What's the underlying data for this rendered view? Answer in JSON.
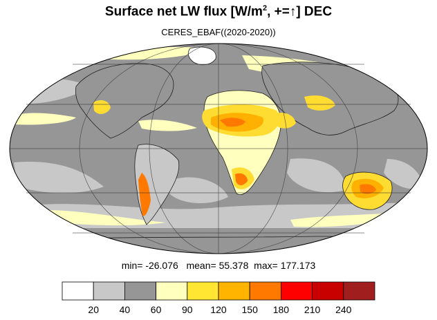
{
  "title": {
    "main": "Surface net LW flux [W/m",
    "sup": "2",
    "rest": ", +=↑]  DEC"
  },
  "subtitle": "CERES_EBAF((2020-2020))",
  "stats": {
    "min_label": "min=",
    "min": "-26.076",
    "mean_label": "mean=",
    "mean": "55.378",
    "max_label": "max=",
    "max": "177.173"
  },
  "colors": {
    "ocean_base": "#969696",
    "land_light": "#ffffbe",
    "yellow": "#ffdc32",
    "orange": "#ffb000",
    "dark_orange": "#ff7800",
    "light_gray": "#c8c8c8",
    "white": "#ffffff",
    "grid": "#333333",
    "coast": "#1e1e1e"
  },
  "legend": {
    "colors": [
      "#ffffff",
      "#c8c8c8",
      "#969696",
      "#ffffbe",
      "#ffe632",
      "#ffb400",
      "#ff7800",
      "#ff0000",
      "#c80000",
      "#a01e1e"
    ],
    "ticks": [
      "20",
      "40",
      "60",
      "90",
      "120",
      "150",
      "180",
      "210",
      "240"
    ]
  }
}
